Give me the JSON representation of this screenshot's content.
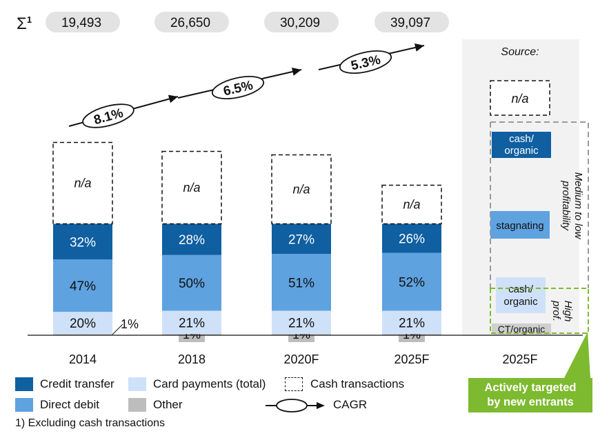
{
  "sigma_label": "Σ",
  "sigma_sup": "1",
  "colors": {
    "credit_transfer": "#0f5fa1",
    "direct_debit": "#5fa2e0",
    "card_payments": "#cfe1f9",
    "other": "#bdbdbd",
    "panel_bg": "#f2f2f2",
    "accent_green": "#7dba2f",
    "total_pill": "#e3e3e3"
  },
  "chart_data": {
    "type": "bar",
    "stacked": true,
    "unit": "%",
    "categories": [
      "2014",
      "2018",
      "2020F",
      "2025F"
    ],
    "totals": [
      "19,493",
      "26,650",
      "30,209",
      "39,097"
    ],
    "series": [
      {
        "name": "Other",
        "values": [
          1,
          1,
          1,
          1
        ],
        "labels": [
          "1%",
          "1%",
          "1%",
          "1%"
        ]
      },
      {
        "name": "Card payments (total)",
        "values": [
          20,
          21,
          21,
          21
        ],
        "labels": [
          "20%",
          "21%",
          "21%",
          "21%"
        ]
      },
      {
        "name": "Direct debit",
        "values": [
          47,
          50,
          51,
          52
        ],
        "labels": [
          "47%",
          "50%",
          "51%",
          "52%"
        ]
      },
      {
        "name": "Credit transfer",
        "values": [
          32,
          28,
          27,
          26
        ],
        "labels": [
          "32%",
          "28%",
          "27%",
          "26%"
        ]
      },
      {
        "name": "Cash transactions",
        "values": [
          null,
          null,
          null,
          null
        ],
        "labels": [
          "n/a",
          "n/a",
          "n/a",
          "n/a"
        ]
      }
    ],
    "cagr": [
      "8.1%",
      "6.5%",
      "5.3%"
    ],
    "outlook": {
      "category": "2025F",
      "source_label": "Source:",
      "cash_label": "n/a",
      "credit_transfer_label": "cash/\norganic",
      "direct_debit_label": "stagnating",
      "card_label": "cash/\norganic",
      "other_label": "CT/organic",
      "medium_label": "Medium to low profitability",
      "high_label": "High prof."
    },
    "legend": [
      {
        "key": "credit_transfer",
        "label": "Credit transfer"
      },
      {
        "key": "card_payments",
        "label": "Card payments (total)"
      },
      {
        "key": "cash",
        "label": "Cash transactions"
      },
      {
        "key": "direct_debit",
        "label": "Direct debit"
      },
      {
        "key": "other",
        "label": "Other"
      },
      {
        "key": "cagr",
        "label": "CAGR"
      }
    ],
    "footnote": "1) Excluding cash transactions",
    "callout": "Actively targeted by new entrants"
  }
}
